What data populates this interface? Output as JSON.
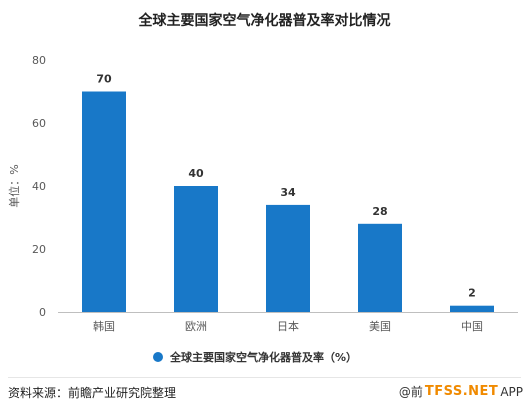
{
  "title": "全球主要国家空气净化器普及率对比情况",
  "source": "资料来源：前瞻产业研究院整理",
  "logo": {
    "prefix": "@前",
    "brand": "TFSS.NET",
    "suffix": "APP"
  },
  "chart_data": {
    "type": "bar",
    "title": "全球主要国家空气净化器普及率对比情况",
    "categories": [
      "韩国",
      "欧洲",
      "日本",
      "美国",
      "中国"
    ],
    "series": [
      {
        "name": "全球主要国家空气净化器普及率（%）",
        "values": [
          70,
          40,
          34,
          28,
          2
        ]
      }
    ],
    "ylabel": "单位：%",
    "ylim": [
      0,
      80
    ],
    "yticks": [
      0,
      20,
      40,
      60,
      80
    ],
    "grid": false,
    "legend": "bottom",
    "data_labels": true,
    "colors": {
      "bar": "#1878C8",
      "axis": "#bfbfbf",
      "text": "#595959",
      "label": "#333333"
    }
  }
}
